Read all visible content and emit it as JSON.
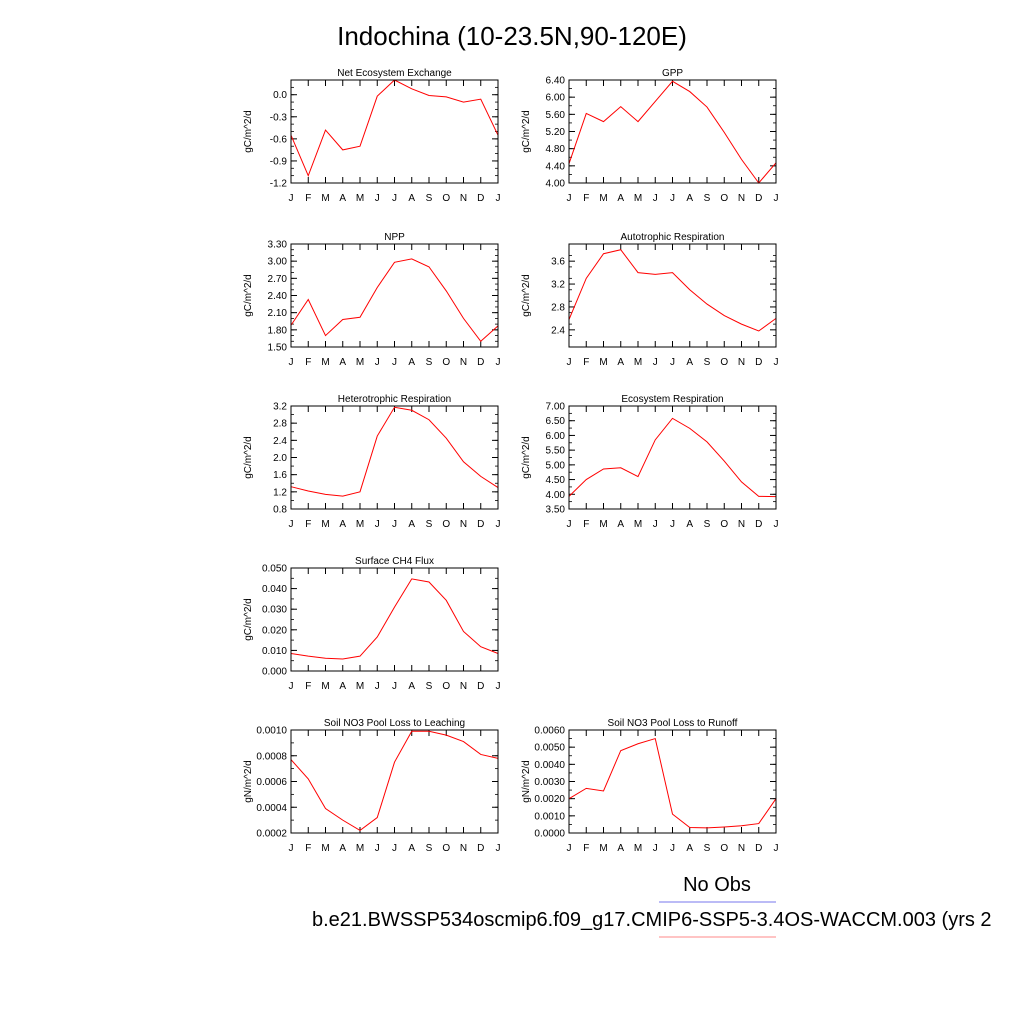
{
  "title": "Indochina (10-23.5N,90-120E)",
  "legend": {
    "obs_label": "No Obs",
    "obs_color": "#7777ee",
    "model_color": "#ff8888"
  },
  "footer": "b.e21.BWSSP534oscmip6.f09_g17.CMIP6-SSP5-3.4OS-WACCM.003 (yrs 2",
  "series_color": "#ff0000",
  "months": [
    "J",
    "F",
    "M",
    "A",
    "M",
    "J",
    "J",
    "A",
    "S",
    "O",
    "N",
    "D",
    "J"
  ],
  "chart_data": [
    {
      "type": "line",
      "title": "Net Ecosystem Exchange",
      "ylabel": "gC/m^2/d",
      "ylim": [
        -1.2,
        0.2
      ],
      "yticks": [
        -1.2,
        -0.9,
        -0.6,
        -0.3,
        0.0
      ],
      "ytick_labels": [
        "-1.2",
        "-0.9",
        "-0.6",
        "-0.3",
        "0.0"
      ],
      "yminor_step": 0.1,
      "values": [
        -0.55,
        -1.1,
        -0.48,
        -0.75,
        -0.7,
        -0.02,
        0.2,
        0.08,
        -0.01,
        -0.03,
        -0.1,
        -0.06,
        -0.55
      ]
    },
    {
      "type": "line",
      "title": "GPP",
      "ylabel": "gC/m^2/d",
      "ylim": [
        4.0,
        6.4
      ],
      "yticks": [
        4.0,
        4.4,
        4.8,
        5.2,
        5.6,
        6.0,
        6.4
      ],
      "ytick_labels": [
        "4.00",
        "4.40",
        "4.80",
        "5.20",
        "5.60",
        "6.00",
        "6.40"
      ],
      "yminor_step": 0.2,
      "values": [
        4.45,
        5.62,
        5.43,
        5.78,
        5.43,
        5.9,
        6.37,
        6.13,
        5.77,
        5.18,
        4.55,
        4.0,
        4.47
      ]
    },
    {
      "type": "line",
      "title": "NPP",
      "ylabel": "gC/m^2/d",
      "ylim": [
        1.5,
        3.3
      ],
      "yticks": [
        1.5,
        1.8,
        2.1,
        2.4,
        2.7,
        3.0,
        3.3
      ],
      "ytick_labels": [
        "1.50",
        "1.80",
        "2.10",
        "2.40",
        "2.70",
        "3.00",
        "3.30"
      ],
      "yminor_step": 0.1,
      "values": [
        1.88,
        2.33,
        1.7,
        1.98,
        2.02,
        2.54,
        2.98,
        3.04,
        2.9,
        2.48,
        2.0,
        1.6,
        1.87
      ]
    },
    {
      "type": "line",
      "title": "Autotrophic Respiration",
      "ylabel": "gC/m^2/d",
      "ylim": [
        2.1,
        3.9
      ],
      "yticks": [
        2.4,
        2.8,
        3.2,
        3.6
      ],
      "ytick_labels": [
        "2.4",
        "2.8",
        "3.2",
        "3.6"
      ],
      "yminor_step": 0.2,
      "values": [
        2.58,
        3.3,
        3.73,
        3.8,
        3.4,
        3.37,
        3.4,
        3.1,
        2.85,
        2.65,
        2.5,
        2.38,
        2.6
      ]
    },
    {
      "type": "line",
      "title": "Heterotrophic Respiration",
      "ylabel": "gC/m^2/d",
      "ylim": [
        0.8,
        3.2
      ],
      "yticks": [
        0.8,
        1.2,
        1.6,
        2.0,
        2.4,
        2.8,
        3.2
      ],
      "ytick_labels": [
        "0.8",
        "1.2",
        "1.6",
        "2.0",
        "2.4",
        "2.8",
        "3.2"
      ],
      "yminor_step": 0.2,
      "values": [
        1.32,
        1.22,
        1.14,
        1.1,
        1.2,
        2.5,
        3.17,
        3.1,
        2.88,
        2.45,
        1.9,
        1.56,
        1.3
      ]
    },
    {
      "type": "line",
      "title": "Ecosystem Respiration",
      "ylabel": "gC/m^2/d",
      "ylim": [
        3.5,
        7.0
      ],
      "yticks": [
        3.5,
        4.0,
        4.5,
        5.0,
        5.5,
        6.0,
        6.5,
        7.0
      ],
      "ytick_labels": [
        "3.50",
        "4.00",
        "4.50",
        "5.00",
        "5.50",
        "6.00",
        "6.50",
        "7.00"
      ],
      "yminor_step": 0.25,
      "values": [
        3.93,
        4.5,
        4.86,
        4.9,
        4.6,
        5.85,
        6.58,
        6.24,
        5.78,
        5.13,
        4.42,
        3.93,
        3.92
      ]
    },
    {
      "type": "line",
      "title": "Surface CH4 Flux",
      "ylabel": "gC/m^2/d",
      "ylim": [
        0.0,
        0.05
      ],
      "yticks": [
        0.0,
        0.01,
        0.02,
        0.03,
        0.04,
        0.05
      ],
      "ytick_labels": [
        "0.000",
        "0.010",
        "0.020",
        "0.030",
        "0.040",
        "0.050"
      ],
      "yminor_step": 0.005,
      "values": [
        0.0085,
        0.0072,
        0.0062,
        0.0058,
        0.0072,
        0.0165,
        0.031,
        0.0447,
        0.0432,
        0.0343,
        0.0192,
        0.0118,
        0.0085
      ]
    },
    {
      "type": "line",
      "title": "Soil NO3 Pool Loss to Leaching",
      "ylabel": "gN/m^2/d",
      "ylim": [
        0.0002,
        0.001
      ],
      "yticks": [
        0.0002,
        0.0004,
        0.0006,
        0.0008,
        0.001
      ],
      "ytick_labels": [
        "0.0002",
        "0.0004",
        "0.0006",
        "0.0008",
        "0.0010"
      ],
      "yminor_step": 0.0001,
      "values": [
        0.00077,
        0.00062,
        0.00039,
        0.0003,
        0.00022,
        0.00032,
        0.00075,
        0.00099,
        0.00099,
        0.00096,
        0.00091,
        0.00081,
        0.00078
      ]
    },
    {
      "type": "line",
      "title": "Soil NO3 Pool Loss to Runoff",
      "ylabel": "gN/m^2/d",
      "ylim": [
        0.0,
        0.006
      ],
      "yticks": [
        0.0,
        0.001,
        0.002,
        0.003,
        0.004,
        0.005,
        0.006
      ],
      "ytick_labels": [
        "0.0000",
        "0.0010",
        "0.0020",
        "0.0030",
        "0.0040",
        "0.0050",
        "0.0060"
      ],
      "yminor_step": 0.0005,
      "values": [
        0.002,
        0.0026,
        0.00245,
        0.0048,
        0.0052,
        0.0055,
        0.0011,
        0.00032,
        0.0003,
        0.00035,
        0.00042,
        0.00055,
        0.002
      ]
    }
  ]
}
